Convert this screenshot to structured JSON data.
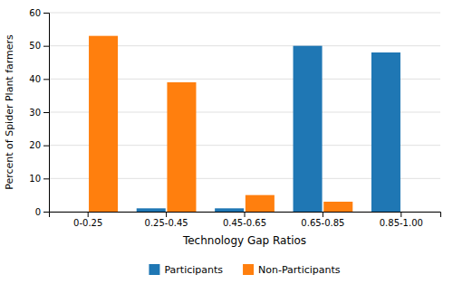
{
  "chart_data": {
    "type": "bar",
    "categories": [
      "0-0.25",
      "0.25-0.45",
      "0.45-0.65",
      "0.65-0.85",
      "0.85-1.00"
    ],
    "series": [
      {
        "name": "Participants",
        "values": [
          0,
          1,
          1,
          50,
          48
        ]
      },
      {
        "name": "Non-Participants",
        "values": [
          53,
          39,
          5,
          3,
          0
        ]
      }
    ],
    "xlabel": "Technology Gap Ratios",
    "ylabel": "Percent of Spider Plant farmers",
    "ylim": [
      0,
      60
    ],
    "yticks": [
      0,
      10,
      20,
      30,
      40,
      50,
      60
    ],
    "grid": true,
    "legend": "bottom"
  }
}
